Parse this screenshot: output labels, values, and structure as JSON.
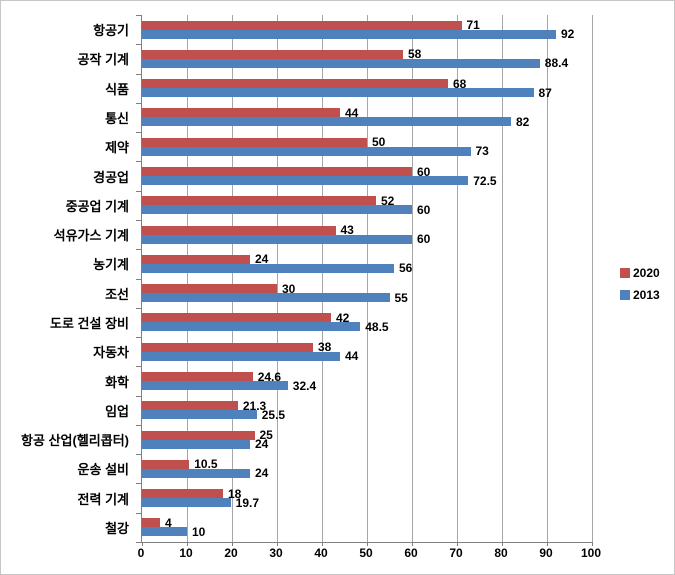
{
  "chart_data": {
    "type": "bar",
    "orientation": "horizontal",
    "title": "",
    "xlabel": "",
    "ylabel": "",
    "xlim": [
      0,
      100
    ],
    "xticks": [
      0,
      10,
      20,
      30,
      40,
      50,
      60,
      70,
      80,
      90,
      100
    ],
    "grid": true,
    "data_labels": true,
    "legend_position": "right",
    "categories": [
      "항공기",
      "공작 기계",
      "식품",
      "통신",
      "제약",
      "경공업",
      "중공업 기계",
      "석유가스 기계",
      "농기계",
      "조선",
      "도로 건설 장비",
      "자동차",
      "화학",
      "임업",
      "항공 산업(헬리콥터)",
      "운송 설비",
      "전력 기계",
      "철강"
    ],
    "series": [
      {
        "name": "2020",
        "color": "#C0504D",
        "values": [
          71,
          58,
          68,
          44,
          50,
          60,
          52,
          43,
          24,
          30,
          42,
          38,
          24.6,
          21.3,
          25,
          10.5,
          18,
          4
        ]
      },
      {
        "name": "2013",
        "color": "#4F81BD",
        "values": [
          92,
          88.4,
          87,
          82,
          73,
          72.5,
          60,
          60,
          56,
          55,
          48.5,
          44,
          32.4,
          25.5,
          24,
          24,
          19.7,
          10
        ]
      }
    ]
  },
  "legend": {
    "items": [
      {
        "label": "2020",
        "color": "#C0504D"
      },
      {
        "label": "2013",
        "color": "#4F81BD"
      }
    ]
  },
  "colors": {
    "gridline": "#a6a6a6",
    "axis": "#7f7f7f",
    "background": "#ffffff",
    "border": "#c6c6c6"
  }
}
